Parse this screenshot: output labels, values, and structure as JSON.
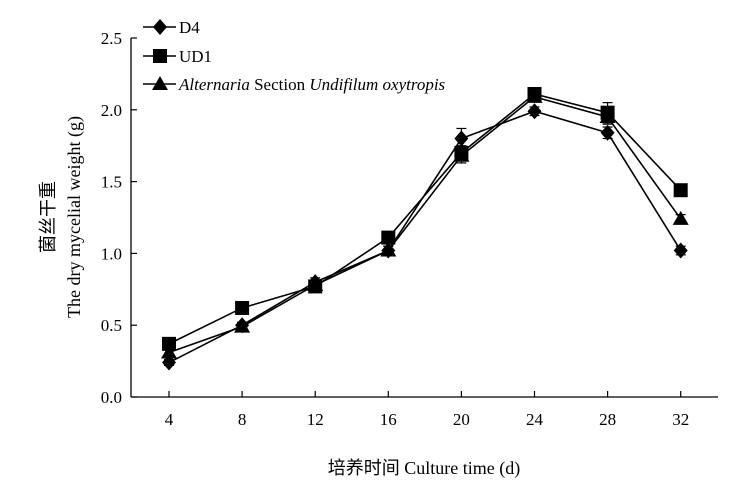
{
  "chart_data": {
    "type": "line",
    "xlabel": "培养时间 Culture time (d)",
    "ylabel_cn": "菌丝干重",
    "ylabel_en": "The dry mycelial weight (g)",
    "x": [
      4,
      8,
      12,
      16,
      20,
      24,
      28,
      32
    ],
    "ylim": [
      0,
      2.5
    ],
    "yticks": [
      "0.0",
      "0.5",
      "1.0",
      "1.5",
      "2.0",
      "2.5"
    ],
    "xticks": [
      "4",
      "8",
      "12",
      "16",
      "20",
      "24",
      "28",
      "32"
    ],
    "grid": false,
    "legend_position": "top-left",
    "series": [
      {
        "name": "D4",
        "marker": "diamond",
        "values": [
          0.24,
          0.5,
          0.8,
          1.02,
          1.8,
          1.99,
          1.84,
          1.02
        ],
        "errors": [
          0.02,
          0.02,
          0.03,
          0.03,
          0.07,
          0.03,
          0.04,
          0.03
        ]
      },
      {
        "name": "UD1",
        "marker": "square",
        "values": [
          0.37,
          0.62,
          0.77,
          1.11,
          1.7,
          2.11,
          1.98,
          1.44
        ],
        "errors": [
          0.02,
          0.03,
          0.03,
          0.03,
          0.05,
          0.03,
          0.07,
          0.02
        ]
      },
      {
        "name_parts": [
          "Alternaria",
          " Section ",
          "Undifilum oxytropis"
        ],
        "marker": "triangle",
        "values": [
          0.31,
          0.49,
          0.78,
          1.02,
          1.68,
          2.09,
          1.95,
          1.24
        ],
        "errors": [
          0.02,
          0.03,
          0.03,
          0.03,
          0.05,
          0.03,
          0.05,
          0.03
        ]
      }
    ],
    "colors": {
      "line": "#000000",
      "marker": "#000000"
    }
  }
}
